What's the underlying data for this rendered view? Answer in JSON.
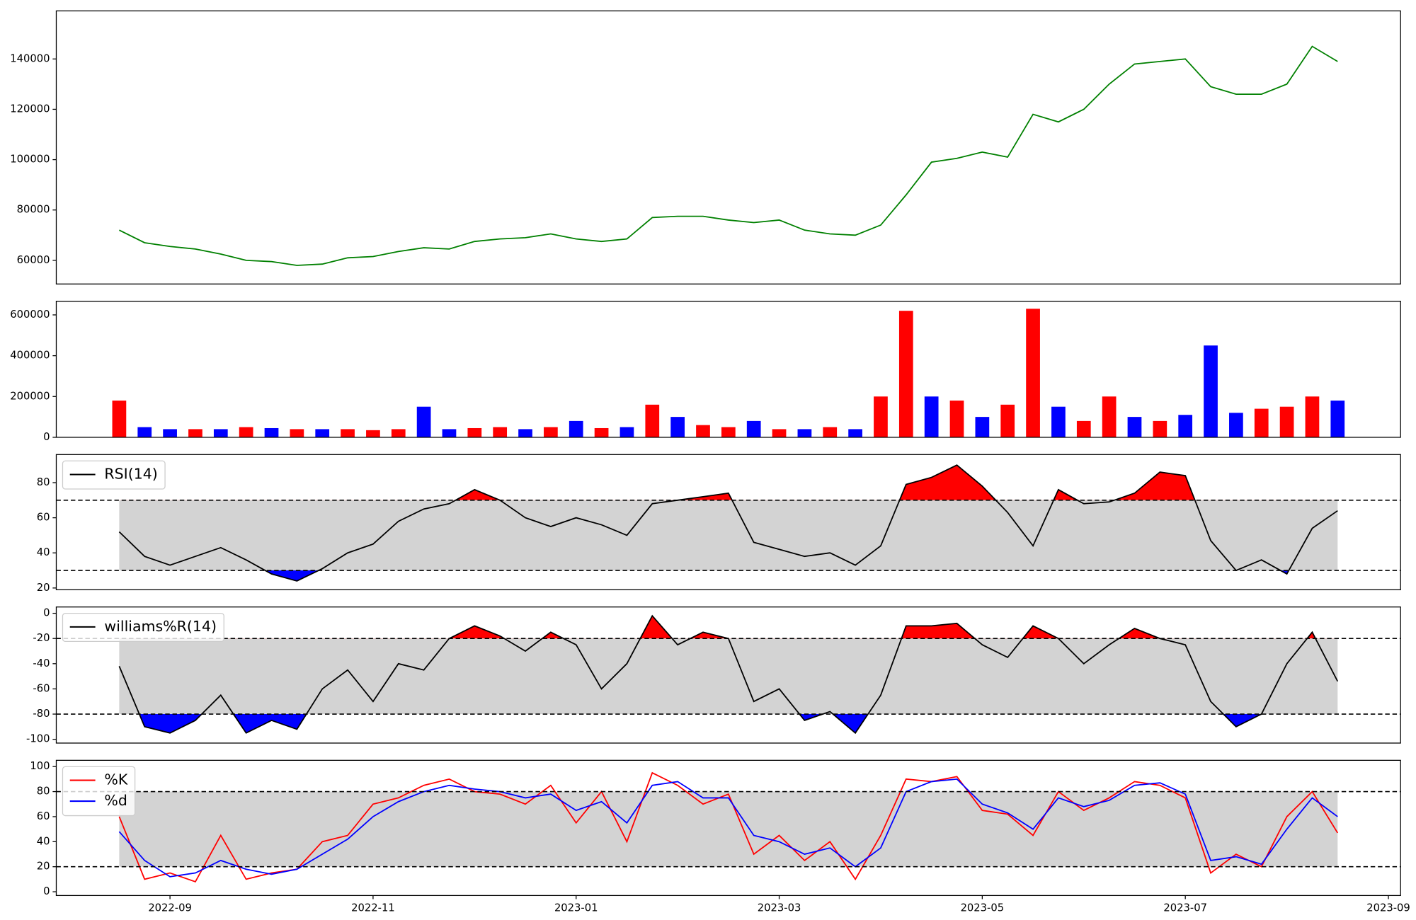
{
  "chart_data": [
    {
      "type": "line",
      "color": "#008000",
      "x": [
        -0.5,
        -0.25,
        0,
        0.25,
        0.5,
        0.75,
        1,
        1.25,
        1.5,
        1.75,
        2,
        2.25,
        2.5,
        2.75,
        3,
        3.25,
        3.5,
        3.75,
        4,
        4.25,
        4.5,
        4.75,
        5,
        5.25,
        5.5,
        5.75,
        6,
        6.25,
        6.5,
        6.75,
        7,
        7.25,
        7.5,
        7.75,
        8,
        8.25,
        8.5,
        8.75,
        9,
        9.25,
        9.5,
        9.75,
        10,
        10.25,
        10.5,
        10.75,
        11,
        11.25,
        11.5
      ],
      "values": [
        72000,
        67000,
        65500,
        64500,
        62500,
        60000,
        59500,
        58000,
        58500,
        61000,
        61500,
        63500,
        65000,
        64500,
        67500,
        68500,
        69000,
        70500,
        68500,
        67500,
        68500,
        77000,
        77500,
        77500,
        76000,
        75000,
        76000,
        72000,
        70500,
        70000,
        74000,
        86000,
        99000,
        100500,
        103000,
        101000,
        118000,
        115000,
        120000,
        130000,
        138000,
        139000,
        140000,
        129000,
        126000,
        126000,
        130000,
        145000,
        139000
      ],
      "xlim": [
        -1.12,
        12.12
      ],
      "ylim": [
        50600,
        159100
      ],
      "yticks": [
        60000,
        80000,
        100000,
        120000,
        140000
      ]
    },
    {
      "type": "bar",
      "x": [
        -0.5,
        -0.25,
        0,
        0.25,
        0.5,
        0.75,
        1,
        1.25,
        1.5,
        1.75,
        2,
        2.25,
        2.5,
        2.75,
        3,
        3.25,
        3.5,
        3.75,
        4,
        4.25,
        4.5,
        4.75,
        5,
        5.25,
        5.5,
        5.75,
        6,
        6.25,
        6.5,
        6.75,
        7,
        7.25,
        7.5,
        7.75,
        8,
        8.25,
        8.5,
        8.75,
        9,
        9.25,
        9.5,
        9.75,
        10,
        10.25,
        10.5,
        10.75,
        11,
        11.25,
        11.5
      ],
      "values": [
        180000,
        50000,
        40000,
        40000,
        40000,
        50000,
        45000,
        40000,
        40000,
        40000,
        35000,
        40000,
        150000,
        40000,
        45000,
        50000,
        40000,
        50000,
        80000,
        45000,
        50000,
        160000,
        100000,
        60000,
        50000,
        80000,
        40000,
        40000,
        50000,
        40000,
        200000,
        620000,
        200000,
        180000,
        100000,
        160000,
        630000,
        150000,
        80000,
        200000,
        100000,
        80000,
        110000,
        450000,
        120000,
        140000,
        150000,
        200000,
        180000
      ],
      "colors": [
        "#ff0000",
        "#0000ff",
        "#0000ff",
        "#ff0000",
        "#0000ff",
        "#ff0000",
        "#0000ff",
        "#ff0000",
        "#0000ff",
        "#ff0000",
        "#ff0000",
        "#ff0000",
        "#0000ff",
        "#0000ff",
        "#ff0000",
        "#ff0000",
        "#0000ff",
        "#ff0000",
        "#0000ff",
        "#ff0000",
        "#0000ff",
        "#ff0000",
        "#0000ff",
        "#ff0000",
        "#ff0000",
        "#0000ff",
        "#ff0000",
        "#0000ff",
        "#ff0000",
        "#0000ff",
        "#ff0000",
        "#ff0000",
        "#0000ff",
        "#ff0000",
        "#0000ff",
        "#ff0000",
        "#ff0000",
        "#0000ff",
        "#ff0000",
        "#ff0000",
        "#0000ff",
        "#ff0000",
        "#0000ff",
        "#0000ff",
        "#0000ff",
        "#ff0000",
        "#ff0000",
        "#ff0000",
        "#0000ff"
      ],
      "xlim": [
        -1.12,
        12.12
      ],
      "ylim": [
        0,
        667000
      ],
      "yticks": [
        0,
        200000,
        400000,
        600000
      ]
    },
    {
      "type": "line",
      "x": [
        -0.5,
        -0.25,
        0,
        0.25,
        0.5,
        0.75,
        1,
        1.25,
        1.5,
        1.75,
        2,
        2.25,
        2.5,
        2.75,
        3,
        3.25,
        3.5,
        3.75,
        4,
        4.25,
        4.5,
        4.75,
        5,
        5.25,
        5.5,
        5.75,
        6,
        6.25,
        6.5,
        6.75,
        7,
        7.25,
        7.5,
        7.75,
        8,
        8.25,
        8.5,
        8.75,
        9,
        9.25,
        9.5,
        9.75,
        10,
        10.25,
        10.5,
        10.75,
        11,
        11.25,
        11.5
      ],
      "series": [
        {
          "name": "RSI(14)",
          "color": "#000000",
          "values": [
            52,
            38,
            33,
            38,
            43,
            36,
            28,
            24,
            31,
            40,
            45,
            58,
            65,
            68,
            76,
            70,
            60,
            55,
            60,
            56,
            50,
            68,
            70,
            72,
            74,
            46,
            42,
            38,
            40,
            33,
            44,
            79,
            83,
            90,
            78,
            63,
            44,
            76,
            68,
            69,
            74,
            86,
            84,
            47,
            30,
            36,
            28,
            54,
            64
          ]
        }
      ],
      "thresholds": [
        70,
        30
      ],
      "band_color": "#d3d3d3",
      "fill_colors": [
        "#ff0000",
        "#0000ff"
      ],
      "legend": "upper left",
      "xlim": [
        -1.12,
        12.12
      ],
      "ylim": [
        19,
        96
      ],
      "yticks": [
        20,
        40,
        60,
        80
      ]
    },
    {
      "type": "line",
      "x": [
        -0.5,
        -0.25,
        0,
        0.25,
        0.5,
        0.75,
        1,
        1.25,
        1.5,
        1.75,
        2,
        2.25,
        2.5,
        2.75,
        3,
        3.25,
        3.5,
        3.75,
        4,
        4.25,
        4.5,
        4.75,
        5,
        5.25,
        5.5,
        5.75,
        6,
        6.25,
        6.5,
        6.75,
        7,
        7.25,
        7.5,
        7.75,
        8,
        8.25,
        8.5,
        8.75,
        9,
        9.25,
        9.5,
        9.75,
        10,
        10.25,
        10.5,
        10.75,
        11,
        11.25,
        11.5
      ],
      "series": [
        {
          "name": "williams%R(14)",
          "color": "#000000",
          "values": [
            -42,
            -90,
            -95,
            -85,
            -65,
            -95,
            -85,
            -92,
            -60,
            -45,
            -70,
            -40,
            -45,
            -20,
            -10,
            -18,
            -30,
            -15,
            -25,
            -60,
            -40,
            -2,
            -25,
            -15,
            -20,
            -70,
            -60,
            -85,
            -78,
            -95,
            -65,
            -10,
            -10,
            -8,
            -25,
            -35,
            -10,
            -20,
            -40,
            -25,
            -12,
            -20,
            -25,
            -70,
            -90,
            -80,
            -40,
            -15,
            -54
          ]
        }
      ],
      "thresholds": [
        -20,
        -80
      ],
      "band_color": "#d3d3d3",
      "fill_colors": [
        "#ff0000",
        "#0000ff"
      ],
      "legend": "upper left",
      "xlim": [
        -1.12,
        12.12
      ],
      "ylim": [
        -103,
        5
      ],
      "yticks": [
        -100,
        -80,
        -60,
        -40,
        -20,
        0
      ]
    },
    {
      "type": "line",
      "x": [
        -0.5,
        -0.25,
        0,
        0.25,
        0.5,
        0.75,
        1,
        1.25,
        1.5,
        1.75,
        2,
        2.25,
        2.5,
        2.75,
        3,
        3.25,
        3.5,
        3.75,
        4,
        4.25,
        4.5,
        4.75,
        5,
        5.25,
        5.5,
        5.75,
        6,
        6.25,
        6.5,
        6.75,
        7,
        7.25,
        7.5,
        7.75,
        8,
        8.25,
        8.5,
        8.75,
        9,
        9.25,
        9.5,
        9.75,
        10,
        10.25,
        10.5,
        10.75,
        11,
        11.25,
        11.5
      ],
      "series": [
        {
          "name": "%K",
          "color": "#ff0000",
          "values": [
            60,
            10,
            15,
            8,
            45,
            10,
            15,
            18,
            40,
            45,
            70,
            75,
            85,
            90,
            80,
            78,
            70,
            85,
            55,
            80,
            40,
            95,
            85,
            70,
            78,
            30,
            45,
            25,
            40,
            10,
            45,
            90,
            88,
            92,
            65,
            62,
            45,
            80,
            65,
            75,
            88,
            85,
            75,
            15,
            30,
            20,
            60,
            80,
            47
          ]
        },
        {
          "name": "%d",
          "color": "#0000ff",
          "values": [
            48,
            25,
            12,
            15,
            25,
            18,
            14,
            18,
            30,
            42,
            60,
            72,
            80,
            85,
            82,
            80,
            75,
            78,
            65,
            72,
            55,
            85,
            88,
            75,
            75,
            45,
            40,
            30,
            35,
            20,
            35,
            80,
            88,
            90,
            70,
            63,
            50,
            75,
            68,
            73,
            85,
            87,
            78,
            25,
            28,
            22,
            50,
            75,
            60
          ]
        }
      ],
      "thresholds": [
        80,
        20
      ],
      "band_color": "#d3d3d3",
      "legend": "upper left",
      "xlim": [
        -1.12,
        12.12
      ],
      "ylim": [
        -3,
        105
      ],
      "yticks": [
        0,
        20,
        40,
        60,
        80,
        100
      ],
      "xticks": [
        {
          "value": 0,
          "label": "2022-09"
        },
        {
          "value": 2,
          "label": "2022-11"
        },
        {
          "value": 4,
          "label": "2023-01"
        },
        {
          "value": 6,
          "label": "2023-03"
        },
        {
          "value": 8,
          "label": "2023-05"
        },
        {
          "value": 10,
          "label": "2023-07"
        },
        {
          "value": 12,
          "label": "2023-09"
        }
      ]
    }
  ]
}
